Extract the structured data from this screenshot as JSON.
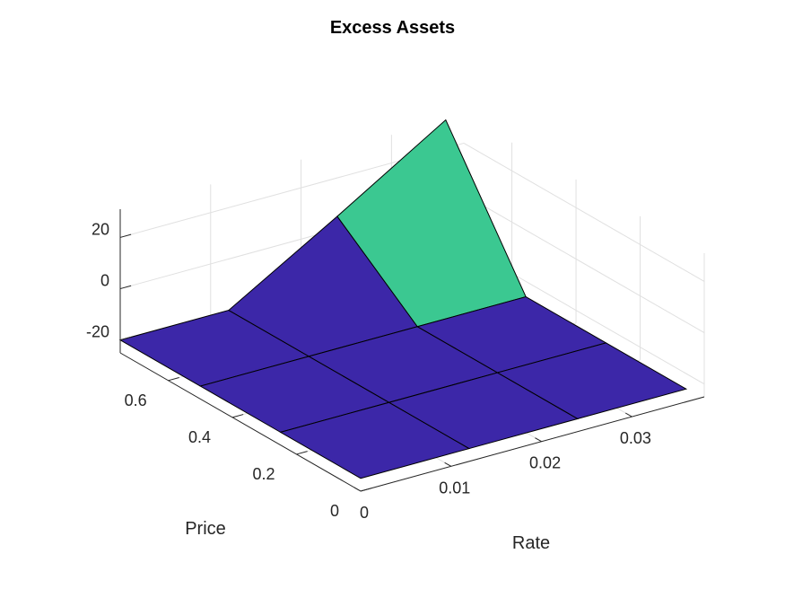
{
  "chart_data": {
    "type": "surface",
    "title": "Excess Assets",
    "xlabel": "Rate",
    "ylabel": "Price",
    "zlabel": "",
    "x": [
      0,
      0.012,
      0.024,
      0.036
    ],
    "y": [
      0,
      0.25,
      0.5,
      0.75
    ],
    "z": [
      [
        -20,
        -20,
        -20,
        -20
      ],
      [
        -20,
        -20,
        -20,
        -20
      ],
      [
        -20,
        -20,
        -20,
        -20
      ],
      [
        -20,
        -20,
        5,
        31
      ]
    ],
    "xlim": [
      0,
      0.038
    ],
    "ylim": [
      0,
      0.75
    ],
    "zlim": [
      -25,
      31
    ],
    "xticks": [
      "0",
      "0.01",
      "0.02",
      "0.03"
    ],
    "yticks": [
      "0",
      "0.2",
      "0.4",
      "0.6"
    ],
    "zticks": [
      "-20",
      "0",
      "20"
    ],
    "grid": true,
    "colors": {
      "low": "#3c27a8",
      "high": "#33c6a0",
      "high_alt": "#3bc891",
      "edge": "#000000",
      "grid": "#e0e0e0",
      "axis": "#262626"
    }
  }
}
